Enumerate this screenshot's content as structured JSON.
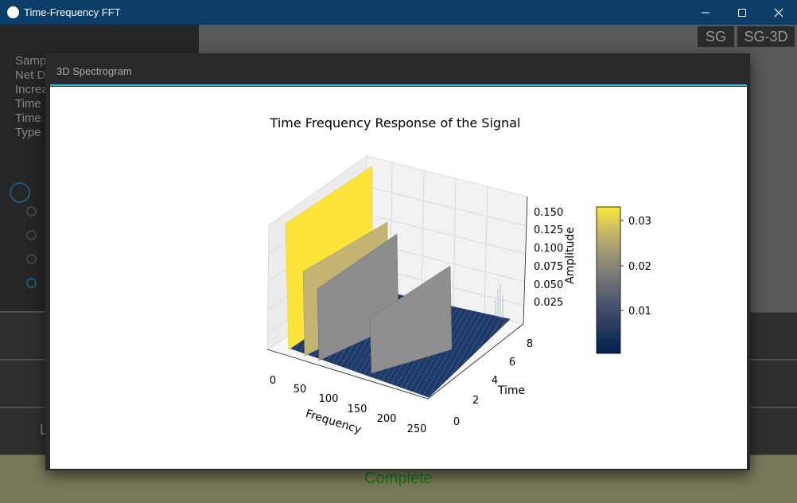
{
  "window": {
    "title": "Time-Frequency FFT"
  },
  "left_panel": {
    "labels": [
      "Samp",
      "Net D",
      "Increa",
      "Time",
      "Time",
      "Type"
    ]
  },
  "toolbar": {
    "tabs": [
      "SG",
      "SG-3D"
    ]
  },
  "lower_buttons": {
    "left_label": "L"
  },
  "status": {
    "text": "Complete"
  },
  "dialog": {
    "title": "3D Spectrogram"
  },
  "chart_data": {
    "type": "surface-3d",
    "title": "Time Frequency Response of the Signal",
    "xlabel": "Frequency",
    "ylabel": "Time",
    "zlabel": "Amplitude",
    "x_ticks": [
      "0",
      "50",
      "100",
      "150",
      "200",
      "250"
    ],
    "y_ticks": [
      "0",
      "2",
      "4",
      "6",
      "8"
    ],
    "z_ticks": [
      "0.025",
      "0.050",
      "0.075",
      "0.100",
      "0.125",
      "0.150"
    ],
    "colorbar_ticks": [
      "0.01",
      "0.02",
      "0.03"
    ],
    "colormap": "cividis",
    "peaks": [
      {
        "frequency": 20,
        "amplitude": 0.16
      },
      {
        "frequency": 50,
        "amplitude": 0.11
      },
      {
        "frequency": 80,
        "amplitude": 0.095
      },
      {
        "frequency": 180,
        "amplitude": 0.08
      }
    ]
  }
}
